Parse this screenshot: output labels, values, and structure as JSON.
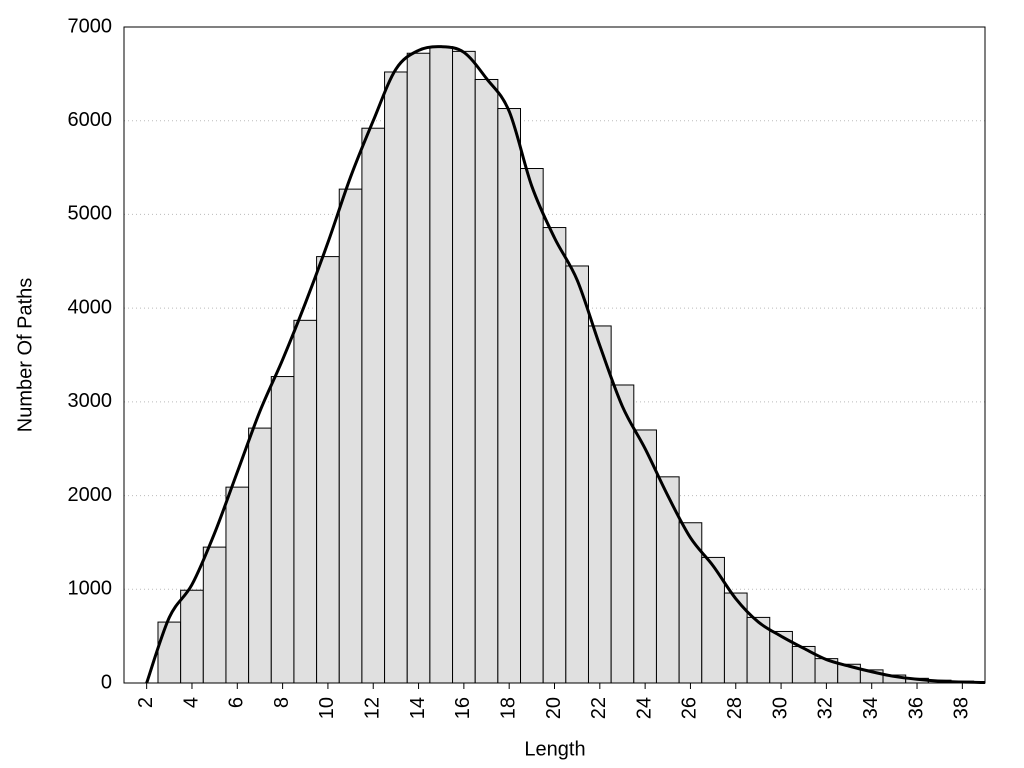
{
  "chart_data": {
    "type": "histogram",
    "x_label": "Length",
    "y_label": "Number Of Paths",
    "bins": [
      2.5,
      3.5,
      4.5,
      5.5,
      6.5,
      7.5,
      8.5,
      9.5,
      10.5,
      11.5,
      12.5,
      13.5,
      14.5,
      15.5,
      16.5,
      17.5,
      18.5,
      19.5,
      20.5,
      21.5,
      22.5,
      23.5,
      24.5,
      25.5,
      26.5,
      27.5,
      28.5,
      29.5,
      30.5,
      31.5,
      32.5,
      33.5,
      34.5,
      35.5,
      36.5,
      37.5,
      38.5
    ],
    "values": [
      650,
      990,
      1450,
      2090,
      2720,
      3270,
      3870,
      4550,
      5270,
      5920,
      6520,
      6720,
      6790,
      6740,
      6440,
      6130,
      5490,
      4860,
      4450,
      3810,
      3180,
      2700,
      2200,
      1710,
      1340,
      960,
      700,
      550,
      390,
      260,
      200,
      140,
      85,
      50,
      30,
      20
    ],
    "color": "#e0e0e0",
    "edge_color": "#000000",
    "line": {
      "color": "#000000",
      "x": [
        2,
        3,
        4,
        5,
        6,
        7,
        8,
        9,
        10,
        11,
        12,
        13,
        14,
        15,
        16,
        17,
        18,
        19,
        20,
        21,
        22,
        23,
        24,
        25,
        26,
        27,
        28,
        29,
        30,
        31,
        32,
        33,
        34,
        35,
        36,
        37,
        38,
        39
      ],
      "values": [
        0,
        700,
        1050,
        1600,
        2250,
        2900,
        3450,
        4050,
        4700,
        5400,
        6000,
        6550,
        6750,
        6790,
        6730,
        6450,
        6100,
        5300,
        4750,
        4300,
        3600,
        2950,
        2500,
        2000,
        1550,
        1250,
        900,
        650,
        500,
        370,
        250,
        180,
        120,
        70,
        40,
        20,
        10,
        5
      ]
    },
    "xlim": [
      1,
      39
    ],
    "ylim": [
      0,
      7000
    ],
    "xticks": [
      2,
      4,
      6,
      8,
      10,
      12,
      14,
      16,
      18,
      20,
      22,
      24,
      26,
      28,
      30,
      32,
      34,
      36,
      38
    ],
    "yticks": [
      0,
      1000,
      2000,
      3000,
      4000,
      5000,
      6000,
      7000
    ],
    "grid": true
  }
}
